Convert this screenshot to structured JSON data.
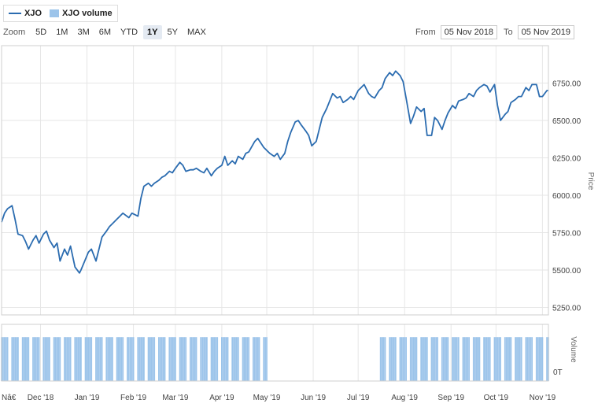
{
  "legend": {
    "price_label": "XJO",
    "volume_label": "XJO volume"
  },
  "toolbar": {
    "zoom_label": "Zoom",
    "buttons": [
      "5D",
      "1M",
      "3M",
      "6M",
      "YTD",
      "1Y",
      "5Y",
      "MAX"
    ],
    "active": "1Y"
  },
  "range": {
    "from_label": "From",
    "from_value": "05 Nov 2018",
    "to_label": "To",
    "to_value": "05 Nov 2019"
  },
  "colors": {
    "line": "#2b6cb0",
    "volume": "#9cc4ea",
    "grid": "#e6e6e6"
  },
  "chart_data": {
    "type": "line",
    "title": "",
    "series": [
      {
        "name": "XJO",
        "type": "line",
        "axis": "price"
      },
      {
        "name": "XJO volume",
        "type": "bar",
        "axis": "volume"
      }
    ],
    "x_axis": {
      "range": [
        "2018-11-05",
        "2019-11-05"
      ],
      "tick_labels": [
        {
          "date": "2018-11-05",
          "label": "Nâ€"
        },
        {
          "date": "2018-12-01",
          "label": "Dec '18"
        },
        {
          "date": "2019-01-01",
          "label": "Jan '19"
        },
        {
          "date": "2019-02-01",
          "label": "Feb '19"
        },
        {
          "date": "2019-03-01",
          "label": "Mar '19"
        },
        {
          "date": "2019-04-01",
          "label": "Apr '19"
        },
        {
          "date": "2019-05-01",
          "label": "May '19"
        },
        {
          "date": "2019-06-01",
          "label": "Jun '19"
        },
        {
          "date": "2019-07-01",
          "label": "Jul '19"
        },
        {
          "date": "2019-08-01",
          "label": "Aug '19"
        },
        {
          "date": "2019-09-01",
          "label": "Sep '19"
        },
        {
          "date": "2019-10-01",
          "label": "Oct '19"
        },
        {
          "date": "2019-11-01",
          "label": "Nov '19"
        }
      ]
    },
    "price_axis": {
      "label": "Price",
      "ylim": [
        5200,
        7000
      ],
      "ticks": [
        5250,
        5500,
        5750,
        6000,
        6250,
        6500,
        6750
      ],
      "tick_labels": [
        "5250.00",
        "5500.00",
        "5750.00",
        "6000.00",
        "6250.00",
        "6500.00",
        "6750.00"
      ],
      "grid": true
    },
    "volume_axis": {
      "label": "Volume",
      "tick_labels": [
        "0T"
      ]
    },
    "price": [
      [
        "2018-11-05",
        5820
      ],
      [
        "2018-11-07",
        5880
      ],
      [
        "2018-11-09",
        5910
      ],
      [
        "2018-11-12",
        5930
      ],
      [
        "2018-11-14",
        5840
      ],
      [
        "2018-11-16",
        5740
      ],
      [
        "2018-11-19",
        5730
      ],
      [
        "2018-11-21",
        5690
      ],
      [
        "2018-11-23",
        5640
      ],
      [
        "2018-11-26",
        5700
      ],
      [
        "2018-11-28",
        5730
      ],
      [
        "2018-11-30",
        5680
      ],
      [
        "2018-12-03",
        5740
      ],
      [
        "2018-12-05",
        5760
      ],
      [
        "2018-12-07",
        5700
      ],
      [
        "2018-12-10",
        5650
      ],
      [
        "2018-12-12",
        5680
      ],
      [
        "2018-12-14",
        5560
      ],
      [
        "2018-12-17",
        5640
      ],
      [
        "2018-12-19",
        5600
      ],
      [
        "2018-12-21",
        5660
      ],
      [
        "2018-12-24",
        5520
      ],
      [
        "2018-12-27",
        5480
      ],
      [
        "2018-12-28",
        5500
      ],
      [
        "2019-01-02",
        5620
      ],
      [
        "2019-01-04",
        5640
      ],
      [
        "2019-01-07",
        5560
      ],
      [
        "2019-01-09",
        5640
      ],
      [
        "2019-01-11",
        5720
      ],
      [
        "2019-01-14",
        5760
      ],
      [
        "2019-01-16",
        5790
      ],
      [
        "2019-01-18",
        5810
      ],
      [
        "2019-01-21",
        5840
      ],
      [
        "2019-01-23",
        5860
      ],
      [
        "2019-01-25",
        5880
      ],
      [
        "2019-01-29",
        5850
      ],
      [
        "2019-01-31",
        5880
      ],
      [
        "2019-02-04",
        5860
      ],
      [
        "2019-02-06",
        5980
      ],
      [
        "2019-02-08",
        6060
      ],
      [
        "2019-02-11",
        6080
      ],
      [
        "2019-02-13",
        6060
      ],
      [
        "2019-02-15",
        6080
      ],
      [
        "2019-02-18",
        6100
      ],
      [
        "2019-02-20",
        6120
      ],
      [
        "2019-02-22",
        6130
      ],
      [
        "2019-02-25",
        6160
      ],
      [
        "2019-02-27",
        6150
      ],
      [
        "2019-03-01",
        6180
      ],
      [
        "2019-03-04",
        6220
      ],
      [
        "2019-03-06",
        6200
      ],
      [
        "2019-03-08",
        6160
      ],
      [
        "2019-03-11",
        6170
      ],
      [
        "2019-03-13",
        6170
      ],
      [
        "2019-03-15",
        6180
      ],
      [
        "2019-03-18",
        6160
      ],
      [
        "2019-03-20",
        6150
      ],
      [
        "2019-03-22",
        6180
      ],
      [
        "2019-03-25",
        6130
      ],
      [
        "2019-03-27",
        6160
      ],
      [
        "2019-03-29",
        6180
      ],
      [
        "2019-04-01",
        6200
      ],
      [
        "2019-04-03",
        6260
      ],
      [
        "2019-04-05",
        6200
      ],
      [
        "2019-04-08",
        6230
      ],
      [
        "2019-04-10",
        6210
      ],
      [
        "2019-04-12",
        6260
      ],
      [
        "2019-04-15",
        6240
      ],
      [
        "2019-04-17",
        6280
      ],
      [
        "2019-04-19",
        6290
      ],
      [
        "2019-04-23",
        6360
      ],
      [
        "2019-04-25",
        6380
      ],
      [
        "2019-04-29",
        6320
      ],
      [
        "2019-05-01",
        6300
      ],
      [
        "2019-05-03",
        6280
      ],
      [
        "2019-05-06",
        6260
      ],
      [
        "2019-05-08",
        6280
      ],
      [
        "2019-05-10",
        6240
      ],
      [
        "2019-05-13",
        6280
      ],
      [
        "2019-05-15",
        6360
      ],
      [
        "2019-05-17",
        6420
      ],
      [
        "2019-05-20",
        6490
      ],
      [
        "2019-05-22",
        6500
      ],
      [
        "2019-05-24",
        6470
      ],
      [
        "2019-05-27",
        6430
      ],
      [
        "2019-05-29",
        6400
      ],
      [
        "2019-05-31",
        6330
      ],
      [
        "2019-06-03",
        6360
      ],
      [
        "2019-06-05",
        6440
      ],
      [
        "2019-06-07",
        6520
      ],
      [
        "2019-06-10",
        6580
      ],
      [
        "2019-06-12",
        6630
      ],
      [
        "2019-06-14",
        6680
      ],
      [
        "2019-06-17",
        6650
      ],
      [
        "2019-06-19",
        6660
      ],
      [
        "2019-06-21",
        6620
      ],
      [
        "2019-06-24",
        6640
      ],
      [
        "2019-06-26",
        6660
      ],
      [
        "2019-06-28",
        6640
      ],
      [
        "2019-07-01",
        6700
      ],
      [
        "2019-07-03",
        6720
      ],
      [
        "2019-07-05",
        6740
      ],
      [
        "2019-07-08",
        6680
      ],
      [
        "2019-07-10",
        6660
      ],
      [
        "2019-07-12",
        6650
      ],
      [
        "2019-07-15",
        6700
      ],
      [
        "2019-07-17",
        6720
      ],
      [
        "2019-07-19",
        6780
      ],
      [
        "2019-07-22",
        6820
      ],
      [
        "2019-07-24",
        6800
      ],
      [
        "2019-07-26",
        6830
      ],
      [
        "2019-07-29",
        6800
      ],
      [
        "2019-07-31",
        6760
      ],
      [
        "2019-08-02",
        6650
      ],
      [
        "2019-08-05",
        6480
      ],
      [
        "2019-08-07",
        6530
      ],
      [
        "2019-08-09",
        6590
      ],
      [
        "2019-08-12",
        6560
      ],
      [
        "2019-08-14",
        6580
      ],
      [
        "2019-08-16",
        6400
      ],
      [
        "2019-08-19",
        6400
      ],
      [
        "2019-08-21",
        6520
      ],
      [
        "2019-08-23",
        6500
      ],
      [
        "2019-08-26",
        6440
      ],
      [
        "2019-08-28",
        6500
      ],
      [
        "2019-08-30",
        6550
      ],
      [
        "2019-09-02",
        6600
      ],
      [
        "2019-09-04",
        6580
      ],
      [
        "2019-09-06",
        6630
      ],
      [
        "2019-09-09",
        6640
      ],
      [
        "2019-09-11",
        6650
      ],
      [
        "2019-09-13",
        6680
      ],
      [
        "2019-09-16",
        6660
      ],
      [
        "2019-09-18",
        6700
      ],
      [
        "2019-09-20",
        6720
      ],
      [
        "2019-09-23",
        6740
      ],
      [
        "2019-09-25",
        6730
      ],
      [
        "2019-09-27",
        6690
      ],
      [
        "2019-09-30",
        6740
      ],
      [
        "2019-10-02",
        6600
      ],
      [
        "2019-10-04",
        6500
      ],
      [
        "2019-10-07",
        6540
      ],
      [
        "2019-10-09",
        6560
      ],
      [
        "2019-10-11",
        6620
      ],
      [
        "2019-10-14",
        6640
      ],
      [
        "2019-10-16",
        6660
      ],
      [
        "2019-10-18",
        6660
      ],
      [
        "2019-10-21",
        6720
      ],
      [
        "2019-10-23",
        6700
      ],
      [
        "2019-10-25",
        6740
      ],
      [
        "2019-10-28",
        6740
      ],
      [
        "2019-10-30",
        6660
      ],
      [
        "2019-11-01",
        6660
      ],
      [
        "2019-11-04",
        6700
      ],
      [
        "2019-11-05",
        6700
      ]
    ],
    "volume": [
      {
        "from": "2018-11-05",
        "to": "2019-05-01",
        "relative_level": 0.82,
        "trading_days_only": true
      },
      {
        "from": "2019-07-16",
        "to": "2019-11-05",
        "relative_level": 0.82,
        "trading_days_only": true
      }
    ]
  }
}
